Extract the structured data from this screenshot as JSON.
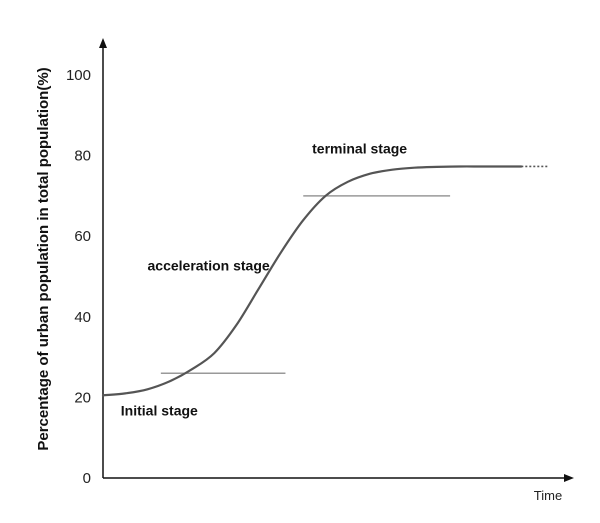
{
  "chart_data": {
    "type": "line",
    "title": "",
    "xlabel": "Time",
    "ylabel": "Percentage of urban population in total population(%)",
    "ylim": [
      0,
      100
    ],
    "yticks": [
      0,
      20,
      40,
      60,
      80,
      100
    ],
    "x_ticks_shown": false,
    "grid": false,
    "legend": "none",
    "line_color": "#555555",
    "stage_line_color": "#999999",
    "curve": {
      "x": [
        0,
        0.05,
        0.1,
        0.15,
        0.2,
        0.25,
        0.3,
        0.35,
        0.4,
        0.45,
        0.5,
        0.55,
        0.6,
        0.65,
        0.7,
        0.75,
        0.8,
        0.85,
        0.9,
        0.94
      ],
      "y": [
        20.5,
        21,
        22,
        24,
        27,
        31,
        38,
        47,
        56,
        64,
        70,
        73.5,
        75.5,
        76.5,
        77,
        77.2,
        77.3,
        77.3,
        77.3,
        77.3
      ]
    },
    "curve_dotted_tail": {
      "x": [
        0.94,
        1.0
      ],
      "y": [
        77.3,
        77.3
      ]
    },
    "stage_lines": [
      {
        "x_start": 0.13,
        "x_end": 0.41,
        "y": 26
      },
      {
        "x_start": 0.45,
        "x_end": 0.78,
        "y": 70
      }
    ],
    "annotations": [
      {
        "text": "Initial stage",
        "x": 0.04,
        "y": 15.5
      },
      {
        "text": "acceleration stage",
        "x": 0.1,
        "y": 51.5
      },
      {
        "text": "terminal stage",
        "x": 0.47,
        "y": 80.5
      }
    ]
  }
}
